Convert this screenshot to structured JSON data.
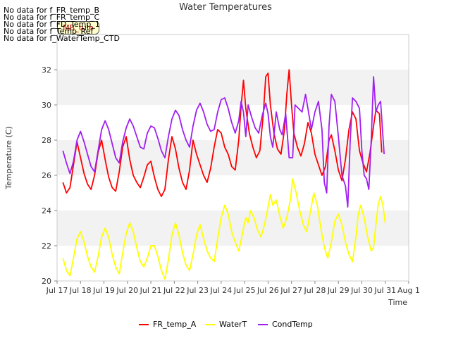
{
  "no_data_messages": [
    "No data for f_FR_temp_B",
    "No data for f_FR_temp_C",
    "No data for f_FD_Temp_1",
    "No data for f_Temp_Ref",
    "No data for f_WaterTemp_CTD"
  ],
  "badge_label": "MB_tule",
  "chart_data": {
    "type": "line",
    "title": "Water Temperatures",
    "xlabel": "Time",
    "ylabel": "Temperature (C)",
    "x_ticks": [
      "Jul 17",
      "Jul 18",
      "Jul 19",
      "Jul 20",
      "Jul 21",
      "Jul 22",
      "Jul 23",
      "Jul 24",
      "Jul 25",
      "Jul 26",
      "Jul 27",
      "Jul 28",
      "Jul 29",
      "Jul 30",
      "Jul 31",
      "Aug 1"
    ],
    "xlim": [
      17,
      32
    ],
    "ylim": [
      20,
      34
    ],
    "y_ticks": [
      20,
      22,
      24,
      26,
      28,
      30,
      32
    ],
    "grid_bands": true,
    "legend_position": "bottom",
    "series": [
      {
        "name": "FR_temp_A",
        "color": "#ff0000",
        "points": [
          [
            17.25,
            25.6
          ],
          [
            17.4,
            25.0
          ],
          [
            17.55,
            25.3
          ],
          [
            17.7,
            26.6
          ],
          [
            17.85,
            27.9
          ],
          [
            18.0,
            27.0
          ],
          [
            18.15,
            26.1
          ],
          [
            18.3,
            25.5
          ],
          [
            18.45,
            25.2
          ],
          [
            18.6,
            26.0
          ],
          [
            18.75,
            27.3
          ],
          [
            18.9,
            28.0
          ],
          [
            19.05,
            26.9
          ],
          [
            19.2,
            25.9
          ],
          [
            19.35,
            25.3
          ],
          [
            19.5,
            25.1
          ],
          [
            19.65,
            26.2
          ],
          [
            19.8,
            27.6
          ],
          [
            19.95,
            28.2
          ],
          [
            20.1,
            26.9
          ],
          [
            20.25,
            26.0
          ],
          [
            20.4,
            25.6
          ],
          [
            20.55,
            25.3
          ],
          [
            20.7,
            25.9
          ],
          [
            20.85,
            26.6
          ],
          [
            21.0,
            26.8
          ],
          [
            21.15,
            25.9
          ],
          [
            21.3,
            25.2
          ],
          [
            21.45,
            24.8
          ],
          [
            21.6,
            25.2
          ],
          [
            21.75,
            26.9
          ],
          [
            21.9,
            28.2
          ],
          [
            22.05,
            27.5
          ],
          [
            22.2,
            26.4
          ],
          [
            22.35,
            25.6
          ],
          [
            22.5,
            25.2
          ],
          [
            22.65,
            26.3
          ],
          [
            22.8,
            28.0
          ],
          [
            22.95,
            27.2
          ],
          [
            23.1,
            26.6
          ],
          [
            23.25,
            26.0
          ],
          [
            23.4,
            25.6
          ],
          [
            23.55,
            26.4
          ],
          [
            23.7,
            27.6
          ],
          [
            23.85,
            28.6
          ],
          [
            24.0,
            28.4
          ],
          [
            24.15,
            27.6
          ],
          [
            24.3,
            27.2
          ],
          [
            24.45,
            26.5
          ],
          [
            24.6,
            26.3
          ],
          [
            24.75,
            28.0
          ],
          [
            24.85,
            29.9
          ],
          [
            24.95,
            31.4
          ],
          [
            25.05,
            29.8
          ],
          [
            25.2,
            28.4
          ],
          [
            25.35,
            27.6
          ],
          [
            25.5,
            27.0
          ],
          [
            25.65,
            27.4
          ],
          [
            25.8,
            29.5
          ],
          [
            25.9,
            31.6
          ],
          [
            26.0,
            31.8
          ],
          [
            26.1,
            30.0
          ],
          [
            26.25,
            28.4
          ],
          [
            26.4,
            27.5
          ],
          [
            26.55,
            27.2
          ],
          [
            26.7,
            28.6
          ],
          [
            26.8,
            30.6
          ],
          [
            26.9,
            32.0
          ],
          [
            27.0,
            30.0
          ],
          [
            27.1,
            28.4
          ],
          [
            27.25,
            27.6
          ],
          [
            27.4,
            27.1
          ],
          [
            27.55,
            27.8
          ],
          [
            27.7,
            29.0
          ],
          [
            27.85,
            28.4
          ],
          [
            28.0,
            27.2
          ],
          [
            28.15,
            26.6
          ],
          [
            28.3,
            26.0
          ],
          [
            28.45,
            26.5
          ],
          [
            28.6,
            28.0
          ],
          [
            28.7,
            28.3
          ],
          [
            28.85,
            27.4
          ],
          [
            29.0,
            26.3
          ],
          [
            29.15,
            25.7
          ],
          [
            29.3,
            26.9
          ],
          [
            29.45,
            28.6
          ],
          [
            29.6,
            29.6
          ],
          [
            29.75,
            29.2
          ],
          [
            29.9,
            27.4
          ],
          [
            30.05,
            26.7
          ],
          [
            30.2,
            26.2
          ],
          [
            30.35,
            27.3
          ],
          [
            30.5,
            28.8
          ],
          [
            30.6,
            29.7
          ],
          [
            30.75,
            29.5
          ],
          [
            30.85,
            27.3
          ]
        ]
      },
      {
        "name": "WaterT",
        "color": "#ffff00",
        "points": [
          [
            17.25,
            21.3
          ],
          [
            17.4,
            20.6
          ],
          [
            17.55,
            20.3
          ],
          [
            17.7,
            21.3
          ],
          [
            17.85,
            22.4
          ],
          [
            18.0,
            22.8
          ],
          [
            18.15,
            22.2
          ],
          [
            18.3,
            21.4
          ],
          [
            18.45,
            20.8
          ],
          [
            18.6,
            20.5
          ],
          [
            18.75,
            21.4
          ],
          [
            18.9,
            22.5
          ],
          [
            19.05,
            23.0
          ],
          [
            19.2,
            22.5
          ],
          [
            19.35,
            21.5
          ],
          [
            19.5,
            20.8
          ],
          [
            19.65,
            20.4
          ],
          [
            19.8,
            21.6
          ],
          [
            19.95,
            22.7
          ],
          [
            20.1,
            23.3
          ],
          [
            20.25,
            22.8
          ],
          [
            20.4,
            21.9
          ],
          [
            20.55,
            21.1
          ],
          [
            20.7,
            20.8
          ],
          [
            20.85,
            21.3
          ],
          [
            21.0,
            22.0
          ],
          [
            21.15,
            22.0
          ],
          [
            21.3,
            21.4
          ],
          [
            21.45,
            20.6
          ],
          [
            21.6,
            20.1
          ],
          [
            21.75,
            21.2
          ],
          [
            21.9,
            22.6
          ],
          [
            22.05,
            23.3
          ],
          [
            22.2,
            22.6
          ],
          [
            22.35,
            21.6
          ],
          [
            22.5,
            20.9
          ],
          [
            22.65,
            20.6
          ],
          [
            22.8,
            21.5
          ],
          [
            22.95,
            22.6
          ],
          [
            23.1,
            23.2
          ],
          [
            23.25,
            22.4
          ],
          [
            23.4,
            21.7
          ],
          [
            23.55,
            21.3
          ],
          [
            23.7,
            21.1
          ],
          [
            23.85,
            22.4
          ],
          [
            24.0,
            23.6
          ],
          [
            24.15,
            24.3
          ],
          [
            24.3,
            23.8
          ],
          [
            24.45,
            22.8
          ],
          [
            24.6,
            22.2
          ],
          [
            24.75,
            21.7
          ],
          [
            24.85,
            22.3
          ],
          [
            24.95,
            23.0
          ],
          [
            25.05,
            23.6
          ],
          [
            25.15,
            23.3
          ],
          [
            25.25,
            24.0
          ],
          [
            25.4,
            23.6
          ],
          [
            25.55,
            22.9
          ],
          [
            25.7,
            22.5
          ],
          [
            25.85,
            23.2
          ],
          [
            26.0,
            24.2
          ],
          [
            26.1,
            24.9
          ],
          [
            26.2,
            24.3
          ],
          [
            26.35,
            24.6
          ],
          [
            26.5,
            23.7
          ],
          [
            26.65,
            23.0
          ],
          [
            26.8,
            23.6
          ],
          [
            26.95,
            24.6
          ],
          [
            27.05,
            25.8
          ],
          [
            27.2,
            25.0
          ],
          [
            27.35,
            24.0
          ],
          [
            27.5,
            23.2
          ],
          [
            27.65,
            22.8
          ],
          [
            27.8,
            23.9
          ],
          [
            27.95,
            25.0
          ],
          [
            28.1,
            24.3
          ],
          [
            28.25,
            23.0
          ],
          [
            28.4,
            21.9
          ],
          [
            28.55,
            21.3
          ],
          [
            28.7,
            22.2
          ],
          [
            28.85,
            23.4
          ],
          [
            29.0,
            23.8
          ],
          [
            29.15,
            23.2
          ],
          [
            29.3,
            22.2
          ],
          [
            29.45,
            21.5
          ],
          [
            29.6,
            21.1
          ],
          [
            29.75,
            22.5
          ],
          [
            29.85,
            23.8
          ],
          [
            29.95,
            24.3
          ],
          [
            30.1,
            23.6
          ],
          [
            30.25,
            22.5
          ],
          [
            30.4,
            21.7
          ],
          [
            30.5,
            21.9
          ],
          [
            30.6,
            23.2
          ],
          [
            30.7,
            24.4
          ],
          [
            30.8,
            24.8
          ],
          [
            30.9,
            24.3
          ],
          [
            31.0,
            23.3
          ]
        ]
      },
      {
        "name": "CondTemp",
        "color": "#a020f0",
        "points": [
          [
            17.25,
            27.4
          ],
          [
            17.4,
            26.7
          ],
          [
            17.55,
            26.1
          ],
          [
            17.7,
            26.8
          ],
          [
            17.85,
            28.0
          ],
          [
            18.0,
            28.5
          ],
          [
            18.15,
            27.9
          ],
          [
            18.3,
            27.2
          ],
          [
            18.45,
            26.5
          ],
          [
            18.6,
            26.2
          ],
          [
            18.75,
            27.4
          ],
          [
            18.9,
            28.6
          ],
          [
            19.05,
            29.1
          ],
          [
            19.2,
            28.6
          ],
          [
            19.35,
            27.8
          ],
          [
            19.5,
            27.0
          ],
          [
            19.65,
            26.7
          ],
          [
            19.8,
            27.9
          ],
          [
            19.95,
            28.7
          ],
          [
            20.1,
            29.2
          ],
          [
            20.25,
            28.8
          ],
          [
            20.4,
            28.2
          ],
          [
            20.55,
            27.6
          ],
          [
            20.7,
            27.5
          ],
          [
            20.85,
            28.4
          ],
          [
            21.0,
            28.8
          ],
          [
            21.15,
            28.7
          ],
          [
            21.3,
            28.1
          ],
          [
            21.45,
            27.4
          ],
          [
            21.6,
            27.0
          ],
          [
            21.75,
            28.2
          ],
          [
            21.9,
            29.2
          ],
          [
            22.05,
            29.7
          ],
          [
            22.2,
            29.4
          ],
          [
            22.35,
            28.6
          ],
          [
            22.5,
            28.0
          ],
          [
            22.65,
            27.6
          ],
          [
            22.8,
            28.8
          ],
          [
            22.95,
            29.7
          ],
          [
            23.1,
            30.1
          ],
          [
            23.25,
            29.6
          ],
          [
            23.4,
            28.9
          ],
          [
            23.55,
            28.5
          ],
          [
            23.7,
            28.6
          ],
          [
            23.85,
            29.6
          ],
          [
            24.0,
            30.3
          ],
          [
            24.15,
            30.4
          ],
          [
            24.3,
            29.8
          ],
          [
            24.45,
            29.0
          ],
          [
            24.6,
            28.4
          ],
          [
            24.75,
            29.1
          ],
          [
            24.85,
            30.2
          ],
          [
            24.95,
            29.6
          ],
          [
            25.05,
            28.2
          ],
          [
            25.15,
            30.0
          ],
          [
            25.3,
            29.3
          ],
          [
            25.45,
            28.7
          ],
          [
            25.6,
            28.4
          ],
          [
            25.75,
            29.4
          ],
          [
            25.9,
            30.1
          ],
          [
            26.0,
            29.5
          ],
          [
            26.1,
            28.2
          ],
          [
            26.2,
            27.6
          ],
          [
            26.35,
            29.6
          ],
          [
            26.5,
            28.6
          ],
          [
            26.6,
            28.3
          ],
          [
            26.75,
            29.5
          ],
          [
            26.9,
            27.0
          ],
          [
            27.05,
            27.0
          ],
          [
            27.15,
            30.0
          ],
          [
            27.3,
            29.8
          ],
          [
            27.45,
            29.6
          ],
          [
            27.6,
            30.6
          ],
          [
            27.75,
            29.4
          ],
          [
            27.85,
            28.6
          ],
          [
            28.0,
            29.6
          ],
          [
            28.15,
            30.2
          ],
          [
            28.3,
            28.6
          ],
          [
            28.4,
            25.6
          ],
          [
            28.5,
            25.0
          ],
          [
            28.6,
            28.8
          ],
          [
            28.7,
            30.6
          ],
          [
            28.85,
            30.2
          ],
          [
            29.0,
            28.2
          ],
          [
            29.15,
            26.0
          ],
          [
            29.3,
            25.4
          ],
          [
            29.4,
            24.2
          ],
          [
            29.5,
            27.8
          ],
          [
            29.6,
            30.4
          ],
          [
            29.75,
            30.2
          ],
          [
            29.9,
            29.8
          ],
          [
            30.0,
            27.4
          ],
          [
            30.1,
            26.0
          ],
          [
            30.2,
            25.8
          ],
          [
            30.3,
            25.2
          ],
          [
            30.4,
            28.0
          ],
          [
            30.5,
            31.6
          ],
          [
            30.6,
            29.6
          ],
          [
            30.7,
            30.0
          ],
          [
            30.8,
            30.2
          ],
          [
            30.95,
            27.2
          ]
        ]
      }
    ]
  }
}
